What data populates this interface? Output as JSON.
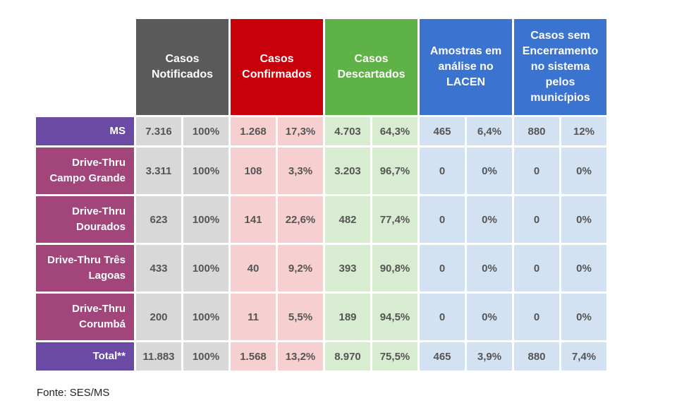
{
  "headers": [
    "Casos Notificados",
    "Casos Confirmados",
    "Casos Descartados",
    "Amostras em análise no LACEN",
    "Casos sem Encerramento no sistema pelos municípios"
  ],
  "rows": [
    {
      "label": "MS",
      "cells": [
        "7.316",
        "100%",
        "1.268",
        "17,3%",
        "4.703",
        "64,3%",
        "465",
        "6,4%",
        "880",
        "12%"
      ]
    },
    {
      "label": "Drive-Thru Campo Grande",
      "cells": [
        "3.311",
        "100%",
        "108",
        "3,3%",
        "3.203",
        "96,7%",
        "0",
        "0%",
        "0",
        "0%"
      ]
    },
    {
      "label": "Drive-Thru Dourados",
      "cells": [
        "623",
        "100%",
        "141",
        "22,6%",
        "482",
        "77,4%",
        "0",
        "0%",
        "0",
        "0%"
      ]
    },
    {
      "label": "Drive-Thru Três Lagoas",
      "cells": [
        "433",
        "100%",
        "40",
        "9,2%",
        "393",
        "90,8%",
        "0",
        "0%",
        "0",
        "0%"
      ]
    },
    {
      "label": "Drive-Thru Corumbá",
      "cells": [
        "200",
        "100%",
        "11",
        "5,5%",
        "189",
        "94,5%",
        "0",
        "0%",
        "0",
        "0%"
      ]
    },
    {
      "label": "Total**",
      "cells": [
        "11.883",
        "100%",
        "1.568",
        "13,2%",
        "8.970",
        "75,5%",
        "465",
        "3,9%",
        "880",
        "7,4%"
      ]
    }
  ],
  "footnote": "Fonte: SES/MS",
  "colors": {
    "header_gray": "#5a5a5a",
    "header_red": "#c8000a",
    "header_green": "#5fb246",
    "header_blue": "#3b73d1",
    "label_purple": "#6a4aa5",
    "label_magenta": "#a2457a"
  }
}
